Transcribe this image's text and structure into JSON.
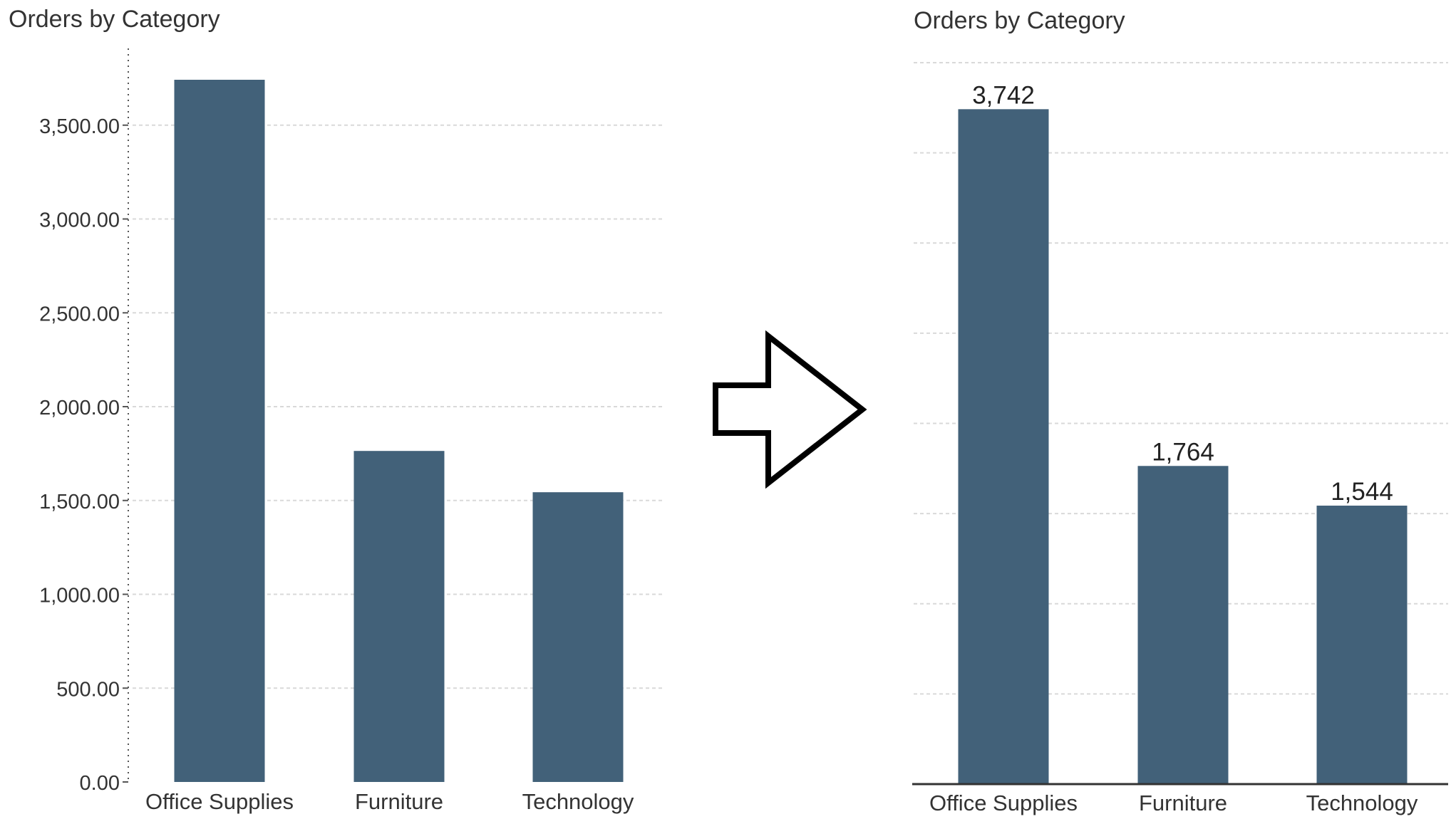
{
  "colors": {
    "bar": "#426179",
    "text": "#333333",
    "grid": "#d9d9d9",
    "axis": "#333333",
    "arrow_stroke": "#000000",
    "arrow_fill": "#ffffff"
  },
  "arrow": {
    "icon": "right-arrow-icon"
  },
  "chart_data": [
    {
      "type": "bar",
      "title": "Orders by Category",
      "xlabel": "",
      "ylabel": "",
      "categories": [
        "Office Supplies",
        "Furniture",
        "Technology"
      ],
      "values": [
        3742,
        1764,
        1544
      ],
      "ylim": [
        0,
        3742
      ],
      "yticks": [
        0,
        500,
        1000,
        1500,
        2000,
        2500,
        3000,
        3500
      ],
      "ytick_labels": [
        "0.00",
        "500.00",
        "1,000.00",
        "1,500.00",
        "2,000.00",
        "2,500.00",
        "3,000.00",
        "3,500.00"
      ],
      "data_labels": false,
      "grid": true,
      "y_axis_visible": true,
      "legend": "none"
    },
    {
      "type": "bar",
      "title": "Orders by Category",
      "xlabel": "",
      "ylabel": "",
      "categories": [
        "Office Supplies",
        "Furniture",
        "Technology"
      ],
      "values": [
        3742,
        1764,
        1544
      ],
      "value_labels": [
        "3,742",
        "1,764",
        "1,544"
      ],
      "ylim": [
        0,
        4000
      ],
      "yticks": [
        500,
        1000,
        1500,
        2000,
        2500,
        3000,
        3500,
        4000
      ],
      "data_labels": true,
      "grid": true,
      "y_axis_visible": false,
      "legend": "none"
    }
  ]
}
